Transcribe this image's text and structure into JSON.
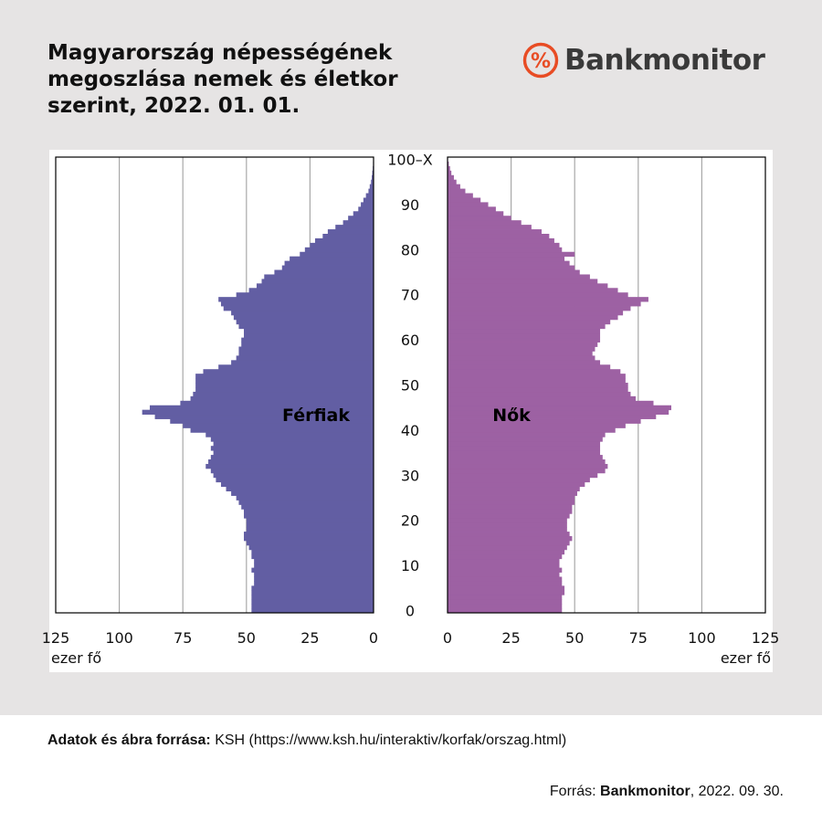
{
  "title_lines": [
    "Magyarország népességének",
    "megoszlása nemek és életkor",
    "szerint, 2022. 01. 01."
  ],
  "logo": {
    "text": "Bankmonitor",
    "symbol": "%",
    "color": "#e84c24"
  },
  "source": {
    "label": "Adatok és ábra forrása:",
    "text": "KSH (https://www.ksh.hu/interaktiv/korfak/orszag.html)"
  },
  "credit": {
    "prefix": "Forrás:",
    "brand": "Bankmonitor",
    "date": ", 2022. 09. 30."
  },
  "chart_data": {
    "type": "bar",
    "orientation": "horizontal",
    "layout": "population-pyramid",
    "age_labels": [
      "0",
      "10",
      "20",
      "30",
      "40",
      "50",
      "60",
      "70",
      "80",
      "90",
      "100–X"
    ],
    "x_ticks": [
      "125",
      "100",
      "75",
      "50",
      "25",
      "0"
    ],
    "x_ticks_right": [
      "0",
      "25",
      "50",
      "75",
      "100",
      "125"
    ],
    "xlim": [
      0,
      125
    ],
    "x_unit": "ezer fő",
    "grid": true,
    "series": [
      {
        "name": "Férfiak",
        "side": "left",
        "color": "#625ea3",
        "ages": [
          0,
          1,
          2,
          3,
          4,
          5,
          6,
          7,
          8,
          9,
          10,
          11,
          12,
          13,
          14,
          15,
          16,
          17,
          18,
          19,
          20,
          21,
          22,
          23,
          24,
          25,
          26,
          27,
          28,
          29,
          30,
          31,
          32,
          33,
          34,
          35,
          36,
          37,
          38,
          39,
          40,
          41,
          42,
          43,
          44,
          45,
          46,
          47,
          48,
          49,
          50,
          51,
          52,
          53,
          54,
          55,
          56,
          57,
          58,
          59,
          60,
          61,
          62,
          63,
          64,
          65,
          66,
          67,
          68,
          69,
          70,
          71,
          72,
          73,
          74,
          75,
          76,
          77,
          78,
          79,
          80,
          81,
          82,
          83,
          84,
          85,
          86,
          87,
          88,
          89,
          90,
          91,
          92,
          93,
          94,
          95,
          96,
          97,
          98,
          99,
          100
        ],
        "values": [
          48,
          48,
          48,
          48,
          48,
          48,
          47,
          47,
          47,
          48,
          47,
          47,
          48,
          48,
          49,
          50,
          51,
          51,
          50,
          50,
          50,
          51,
          51,
          52,
          53,
          54,
          56,
          58,
          60,
          62,
          63,
          64,
          66,
          65,
          64,
          63,
          64,
          63,
          64,
          66,
          72,
          75,
          80,
          86,
          91,
          88,
          76,
          72,
          71,
          70,
          70,
          70,
          70,
          67,
          61,
          56,
          54,
          53,
          53,
          52,
          52,
          51,
          51,
          53,
          54,
          55,
          56,
          59,
          60,
          61,
          54,
          49,
          46,
          44,
          43,
          39,
          36,
          35,
          33,
          29,
          27,
          25,
          23,
          20,
          18,
          15,
          12,
          10,
          8,
          6,
          5,
          4,
          3,
          2,
          1.5,
          1,
          0.7,
          0.5,
          0.3,
          0.2,
          0.1
        ]
      },
      {
        "name": "Nők",
        "side": "right",
        "color": "#9d61a3",
        "ages": [
          0,
          1,
          2,
          3,
          4,
          5,
          6,
          7,
          8,
          9,
          10,
          11,
          12,
          13,
          14,
          15,
          16,
          17,
          18,
          19,
          20,
          21,
          22,
          23,
          24,
          25,
          26,
          27,
          28,
          29,
          30,
          31,
          32,
          33,
          34,
          35,
          36,
          37,
          38,
          39,
          40,
          41,
          42,
          43,
          44,
          45,
          46,
          47,
          48,
          49,
          50,
          51,
          52,
          53,
          54,
          55,
          56,
          57,
          58,
          59,
          60,
          61,
          62,
          63,
          64,
          65,
          66,
          67,
          68,
          69,
          70,
          71,
          72,
          73,
          74,
          75,
          76,
          77,
          78,
          79,
          80,
          81,
          82,
          83,
          84,
          85,
          86,
          87,
          88,
          89,
          90,
          91,
          92,
          93,
          94,
          95,
          96,
          97,
          98,
          99,
          100
        ],
        "values": [
          45,
          45,
          45,
          45,
          46,
          46,
          45,
          45,
          44,
          45,
          44,
          44,
          45,
          46,
          47,
          48,
          49,
          48,
          47,
          47,
          47,
          48,
          49,
          49,
          50,
          50,
          51,
          52,
          54,
          56,
          59,
          62,
          63,
          62,
          61,
          60,
          60,
          60,
          61,
          62,
          66,
          70,
          76,
          82,
          87,
          88,
          81,
          74,
          72,
          71,
          71,
          70,
          70,
          68,
          64,
          60,
          58,
          57,
          58,
          59,
          60,
          60,
          60,
          62,
          64,
          67,
          69,
          72,
          76,
          79,
          71,
          67,
          63,
          59,
          56,
          52,
          50,
          48,
          46,
          50,
          45,
          44,
          42,
          40,
          37,
          33,
          29,
          25,
          22,
          19,
          16,
          13,
          10,
          7,
          5,
          3.5,
          2.5,
          1.5,
          1,
          0.5,
          0.2
        ]
      }
    ]
  }
}
